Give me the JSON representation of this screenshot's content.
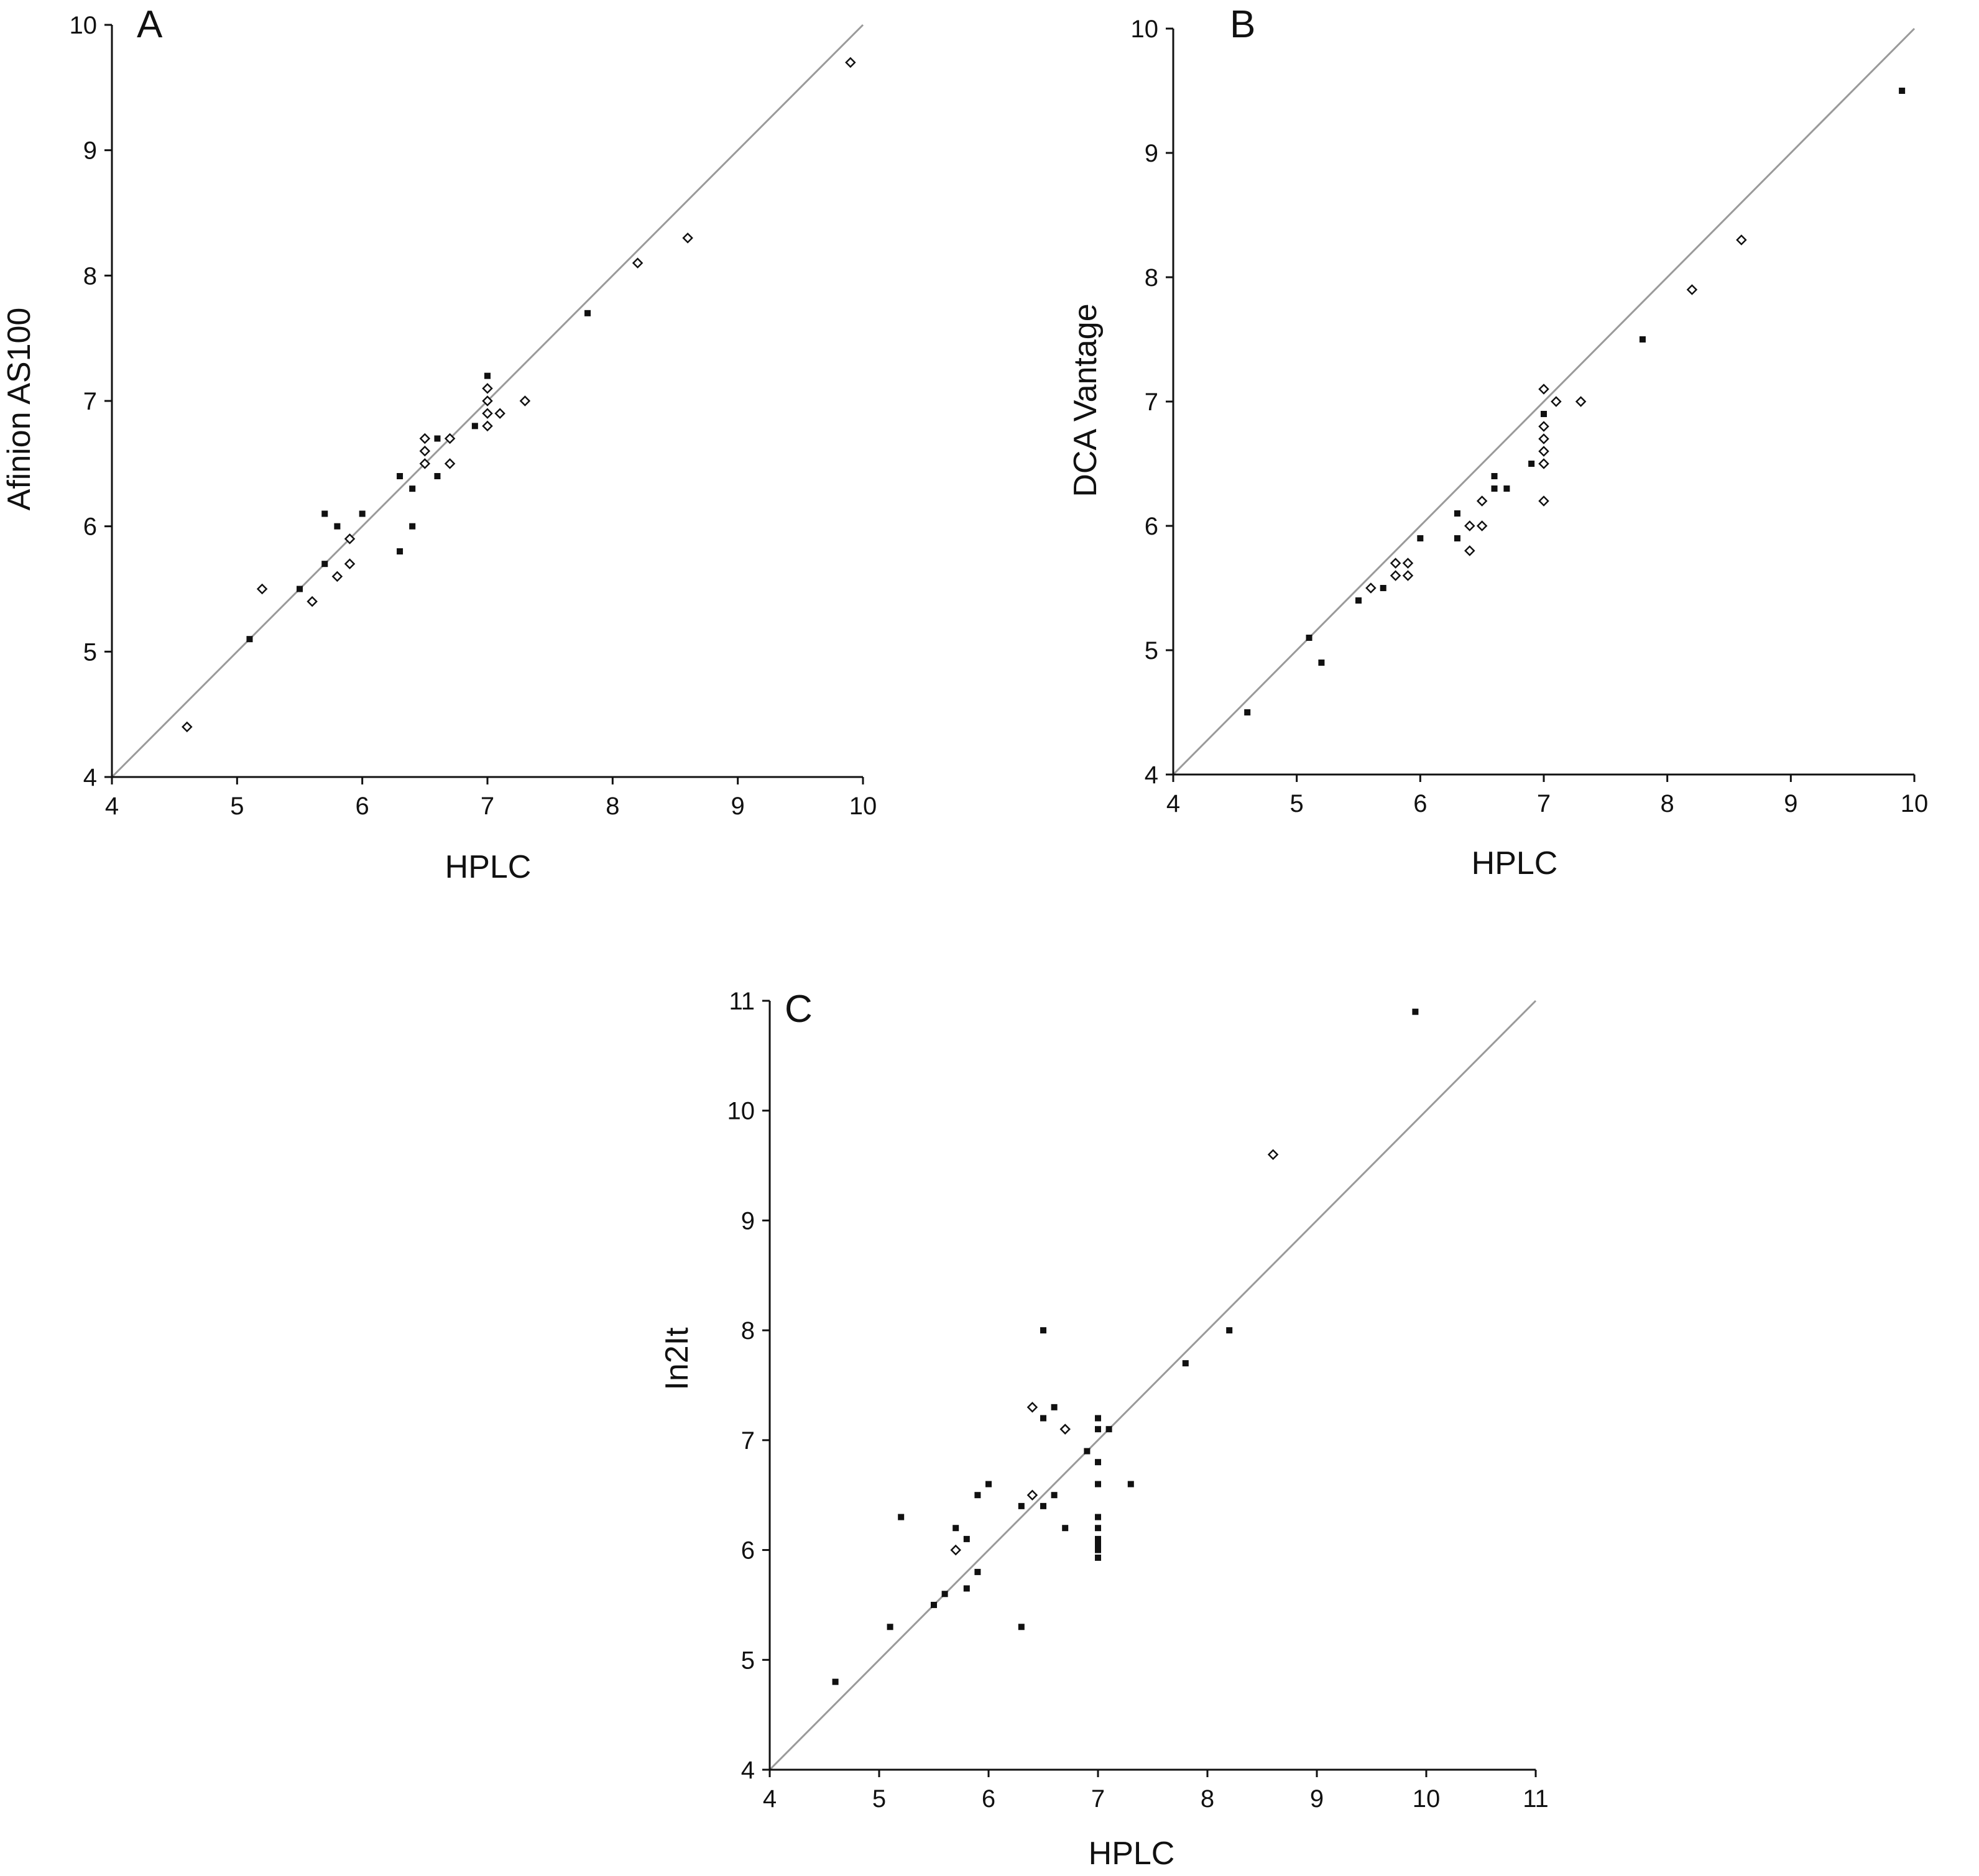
{
  "colors": {
    "axis": "#111111",
    "identity_line": "#9a9a9a",
    "marker": "#111111"
  },
  "chart_data": [
    {
      "type": "scatter",
      "panel": "A",
      "xlabel": "HPLC",
      "ylabel": "Afinion AS100",
      "xlim": [
        4,
        10
      ],
      "ylim": [
        4,
        10
      ],
      "xticks": [
        4,
        5,
        6,
        7,
        8,
        9,
        10
      ],
      "yticks": [
        4,
        5,
        6,
        7,
        8,
        9,
        10
      ],
      "reference_line": "identity",
      "points": [
        {
          "x": 4.6,
          "y": 4.4,
          "marker": "open"
        },
        {
          "x": 5.1,
          "y": 5.1,
          "marker": "filled"
        },
        {
          "x": 5.2,
          "y": 5.5,
          "marker": "open"
        },
        {
          "x": 5.5,
          "y": 5.5,
          "marker": "filled"
        },
        {
          "x": 5.6,
          "y": 5.4,
          "marker": "open"
        },
        {
          "x": 5.7,
          "y": 6.1,
          "marker": "filled"
        },
        {
          "x": 5.7,
          "y": 5.7,
          "marker": "filled"
        },
        {
          "x": 5.8,
          "y": 6.0,
          "marker": "filled"
        },
        {
          "x": 5.8,
          "y": 5.6,
          "marker": "open"
        },
        {
          "x": 5.9,
          "y": 5.9,
          "marker": "open"
        },
        {
          "x": 5.9,
          "y": 5.7,
          "marker": "open"
        },
        {
          "x": 6.0,
          "y": 6.1,
          "marker": "filled"
        },
        {
          "x": 6.3,
          "y": 6.4,
          "marker": "filled"
        },
        {
          "x": 6.3,
          "y": 5.8,
          "marker": "filled"
        },
        {
          "x": 6.4,
          "y": 6.3,
          "marker": "filled"
        },
        {
          "x": 6.4,
          "y": 6.0,
          "marker": "filled"
        },
        {
          "x": 6.5,
          "y": 6.7,
          "marker": "open"
        },
        {
          "x": 6.5,
          "y": 6.6,
          "marker": "open"
        },
        {
          "x": 6.5,
          "y": 6.5,
          "marker": "open"
        },
        {
          "x": 6.6,
          "y": 6.7,
          "marker": "filled"
        },
        {
          "x": 6.6,
          "y": 6.4,
          "marker": "filled"
        },
        {
          "x": 6.7,
          "y": 6.7,
          "marker": "open"
        },
        {
          "x": 6.7,
          "y": 6.5,
          "marker": "open"
        },
        {
          "x": 6.9,
          "y": 6.8,
          "marker": "filled"
        },
        {
          "x": 7.0,
          "y": 7.2,
          "marker": "filled"
        },
        {
          "x": 7.0,
          "y": 7.1,
          "marker": "open"
        },
        {
          "x": 7.0,
          "y": 7.0,
          "marker": "open"
        },
        {
          "x": 7.0,
          "y": 6.9,
          "marker": "open"
        },
        {
          "x": 7.0,
          "y": 6.8,
          "marker": "open"
        },
        {
          "x": 7.1,
          "y": 6.9,
          "marker": "open"
        },
        {
          "x": 7.3,
          "y": 7.0,
          "marker": "open"
        },
        {
          "x": 7.8,
          "y": 7.7,
          "marker": "filled"
        },
        {
          "x": 8.2,
          "y": 8.1,
          "marker": "open"
        },
        {
          "x": 8.6,
          "y": 8.3,
          "marker": "open"
        },
        {
          "x": 9.9,
          "y": 9.7,
          "marker": "open"
        }
      ]
    },
    {
      "type": "scatter",
      "panel": "B",
      "xlabel": "HPLC",
      "ylabel": "DCA Vantage",
      "xlim": [
        4,
        10
      ],
      "ylim": [
        4,
        10
      ],
      "xticks": [
        4,
        5,
        6,
        7,
        8,
        9,
        10
      ],
      "yticks": [
        4,
        5,
        6,
        7,
        8,
        9,
        10
      ],
      "reference_line": "identity",
      "points": [
        {
          "x": 4.6,
          "y": 4.5,
          "marker": "filled"
        },
        {
          "x": 5.1,
          "y": 5.1,
          "marker": "filled"
        },
        {
          "x": 5.2,
          "y": 4.9,
          "marker": "filled"
        },
        {
          "x": 5.5,
          "y": 5.4,
          "marker": "filled"
        },
        {
          "x": 5.6,
          "y": 5.5,
          "marker": "open"
        },
        {
          "x": 5.7,
          "y": 5.5,
          "marker": "filled"
        },
        {
          "x": 5.8,
          "y": 5.7,
          "marker": "open"
        },
        {
          "x": 5.8,
          "y": 5.6,
          "marker": "open"
        },
        {
          "x": 5.9,
          "y": 5.7,
          "marker": "open"
        },
        {
          "x": 5.9,
          "y": 5.6,
          "marker": "open"
        },
        {
          "x": 6.0,
          "y": 5.9,
          "marker": "filled"
        },
        {
          "x": 6.3,
          "y": 6.1,
          "marker": "filled"
        },
        {
          "x": 6.3,
          "y": 5.9,
          "marker": "filled"
        },
        {
          "x": 6.4,
          "y": 6.0,
          "marker": "open"
        },
        {
          "x": 6.4,
          "y": 5.8,
          "marker": "open"
        },
        {
          "x": 6.5,
          "y": 6.2,
          "marker": "open"
        },
        {
          "x": 6.5,
          "y": 6.0,
          "marker": "open"
        },
        {
          "x": 6.6,
          "y": 6.4,
          "marker": "filled"
        },
        {
          "x": 6.6,
          "y": 6.3,
          "marker": "filled"
        },
        {
          "x": 6.7,
          "y": 6.3,
          "marker": "filled"
        },
        {
          "x": 6.9,
          "y": 6.5,
          "marker": "filled"
        },
        {
          "x": 7.0,
          "y": 7.1,
          "marker": "open"
        },
        {
          "x": 7.0,
          "y": 6.9,
          "marker": "filled"
        },
        {
          "x": 7.0,
          "y": 6.8,
          "marker": "open"
        },
        {
          "x": 7.0,
          "y": 6.7,
          "marker": "open"
        },
        {
          "x": 7.0,
          "y": 6.6,
          "marker": "open"
        },
        {
          "x": 7.0,
          "y": 6.5,
          "marker": "open"
        },
        {
          "x": 7.0,
          "y": 6.2,
          "marker": "open"
        },
        {
          "x": 7.1,
          "y": 7.0,
          "marker": "open"
        },
        {
          "x": 7.3,
          "y": 7.0,
          "marker": "open"
        },
        {
          "x": 7.8,
          "y": 7.5,
          "marker": "filled"
        },
        {
          "x": 8.2,
          "y": 7.9,
          "marker": "open"
        },
        {
          "x": 8.6,
          "y": 8.3,
          "marker": "open"
        },
        {
          "x": 9.9,
          "y": 9.5,
          "marker": "filled"
        }
      ]
    },
    {
      "type": "scatter",
      "panel": "C",
      "xlabel": "HPLC",
      "ylabel": "In2It",
      "xlim": [
        4,
        11
      ],
      "ylim": [
        4,
        11
      ],
      "xticks": [
        4,
        5,
        6,
        7,
        8,
        9,
        10,
        11
      ],
      "yticks": [
        4,
        5,
        6,
        7,
        8,
        9,
        10,
        11
      ],
      "reference_line": "identity",
      "points": [
        {
          "x": 4.6,
          "y": 4.8,
          "marker": "filled"
        },
        {
          "x": 5.1,
          "y": 5.3,
          "marker": "filled"
        },
        {
          "x": 5.2,
          "y": 6.3,
          "marker": "filled"
        },
        {
          "x": 5.5,
          "y": 5.5,
          "marker": "filled"
        },
        {
          "x": 5.6,
          "y": 5.6,
          "marker": "filled"
        },
        {
          "x": 5.7,
          "y": 6.2,
          "marker": "filled"
        },
        {
          "x": 5.7,
          "y": 6.0,
          "marker": "open"
        },
        {
          "x": 5.8,
          "y": 6.1,
          "marker": "filled"
        },
        {
          "x": 5.8,
          "y": 5.65,
          "marker": "filled"
        },
        {
          "x": 5.9,
          "y": 6.5,
          "marker": "filled"
        },
        {
          "x": 5.9,
          "y": 5.8,
          "marker": "filled"
        },
        {
          "x": 6.0,
          "y": 6.6,
          "marker": "filled"
        },
        {
          "x": 6.3,
          "y": 6.4,
          "marker": "filled"
        },
        {
          "x": 6.3,
          "y": 5.3,
          "marker": "filled"
        },
        {
          "x": 6.4,
          "y": 7.3,
          "marker": "open"
        },
        {
          "x": 6.4,
          "y": 6.5,
          "marker": "open"
        },
        {
          "x": 6.5,
          "y": 8.0,
          "marker": "filled"
        },
        {
          "x": 6.5,
          "y": 7.2,
          "marker": "filled"
        },
        {
          "x": 6.5,
          "y": 6.4,
          "marker": "filled"
        },
        {
          "x": 6.6,
          "y": 7.3,
          "marker": "filled"
        },
        {
          "x": 6.6,
          "y": 6.5,
          "marker": "filled"
        },
        {
          "x": 6.7,
          "y": 7.1,
          "marker": "open"
        },
        {
          "x": 6.7,
          "y": 6.2,
          "marker": "filled"
        },
        {
          "x": 6.9,
          "y": 6.9,
          "marker": "filled"
        },
        {
          "x": 7.0,
          "y": 7.2,
          "marker": "filled"
        },
        {
          "x": 7.0,
          "y": 7.1,
          "marker": "filled"
        },
        {
          "x": 7.0,
          "y": 6.8,
          "marker": "filled"
        },
        {
          "x": 7.0,
          "y": 6.6,
          "marker": "filled"
        },
        {
          "x": 7.0,
          "y": 6.3,
          "marker": "filled"
        },
        {
          "x": 7.0,
          "y": 6.2,
          "marker": "filled"
        },
        {
          "x": 7.0,
          "y": 6.1,
          "marker": "filled"
        },
        {
          "x": 7.0,
          "y": 6.05,
          "marker": "filled"
        },
        {
          "x": 7.0,
          "y": 6.0,
          "marker": "filled"
        },
        {
          "x": 7.0,
          "y": 5.93,
          "marker": "filled"
        },
        {
          "x": 7.1,
          "y": 7.1,
          "marker": "filled"
        },
        {
          "x": 7.3,
          "y": 6.6,
          "marker": "filled"
        },
        {
          "x": 7.8,
          "y": 7.7,
          "marker": "filled"
        },
        {
          "x": 8.2,
          "y": 8.0,
          "marker": "filled"
        },
        {
          "x": 8.6,
          "y": 9.6,
          "marker": "open"
        },
        {
          "x": 9.9,
          "y": 10.9,
          "marker": "filled"
        }
      ]
    }
  ]
}
